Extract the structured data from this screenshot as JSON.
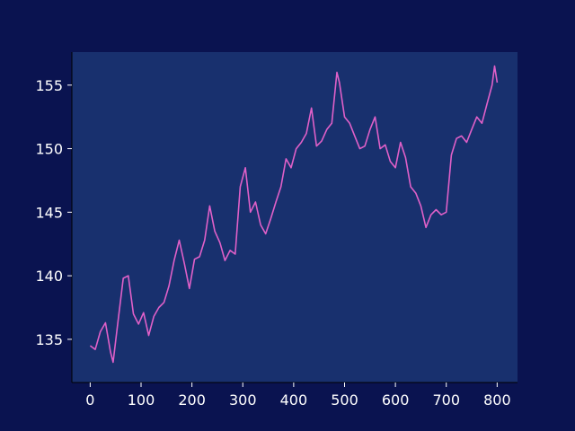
{
  "chart_data": {
    "type": "line",
    "title": "",
    "xlabel": "",
    "ylabel": "",
    "xlim": [
      -36,
      840
    ],
    "ylim": [
      131.6,
      157.6
    ],
    "xticks": [
      0,
      100,
      200,
      300,
      400,
      500,
      600,
      700,
      800
    ],
    "yticks": [
      135,
      140,
      145,
      150,
      155
    ],
    "grid": false,
    "colors": {
      "background": "#0a1350",
      "plot_area": "#18306e",
      "line": "#e060c8",
      "text": "#ffffff"
    },
    "series": [
      {
        "x": [
          0,
          10,
          20,
          30,
          40,
          45,
          55,
          65,
          75,
          85,
          95,
          105,
          115,
          125,
          135,
          145,
          155,
          165,
          175,
          185,
          195,
          205,
          215,
          225,
          235,
          245,
          255,
          265,
          275,
          285,
          295,
          305,
          315,
          325,
          335,
          345,
          355,
          365,
          375,
          385,
          395,
          405,
          415,
          425,
          435,
          445,
          455,
          465,
          475,
          485,
          490,
          500,
          510,
          520,
          530,
          540,
          550,
          560,
          570,
          580,
          590,
          600,
          610,
          620,
          630,
          640,
          650,
          660,
          670,
          680,
          690,
          700,
          710,
          720,
          730,
          740,
          750,
          760,
          770,
          780,
          790,
          795,
          800
        ],
        "y": [
          134.5,
          134.2,
          135.6,
          136.3,
          134.0,
          133.2,
          136.5,
          139.8,
          140.0,
          137.0,
          136.2,
          137.1,
          135.3,
          136.8,
          137.5,
          137.9,
          139.2,
          141.2,
          142.8,
          141.0,
          139.0,
          141.3,
          141.5,
          142.8,
          145.5,
          143.5,
          142.6,
          141.2,
          142.0,
          141.7,
          147.0,
          148.5,
          145.0,
          145.8,
          144.0,
          143.3,
          144.5,
          145.8,
          147.0,
          149.2,
          148.5,
          150.0,
          150.5,
          151.2,
          153.2,
          150.2,
          150.6,
          151.5,
          152.0,
          156.0,
          155.2,
          152.5,
          152.0,
          151.0,
          150.0,
          150.2,
          151.5,
          152.5,
          150.0,
          150.3,
          149.0,
          148.5,
          150.5,
          149.3,
          147.0,
          146.5,
          145.5,
          143.8,
          144.8,
          145.2,
          144.8,
          145.0,
          149.5,
          150.8,
          151.0,
          150.5,
          151.5,
          152.5,
          152.0,
          153.5,
          155.0,
          156.5,
          155.2
        ]
      }
    ]
  }
}
